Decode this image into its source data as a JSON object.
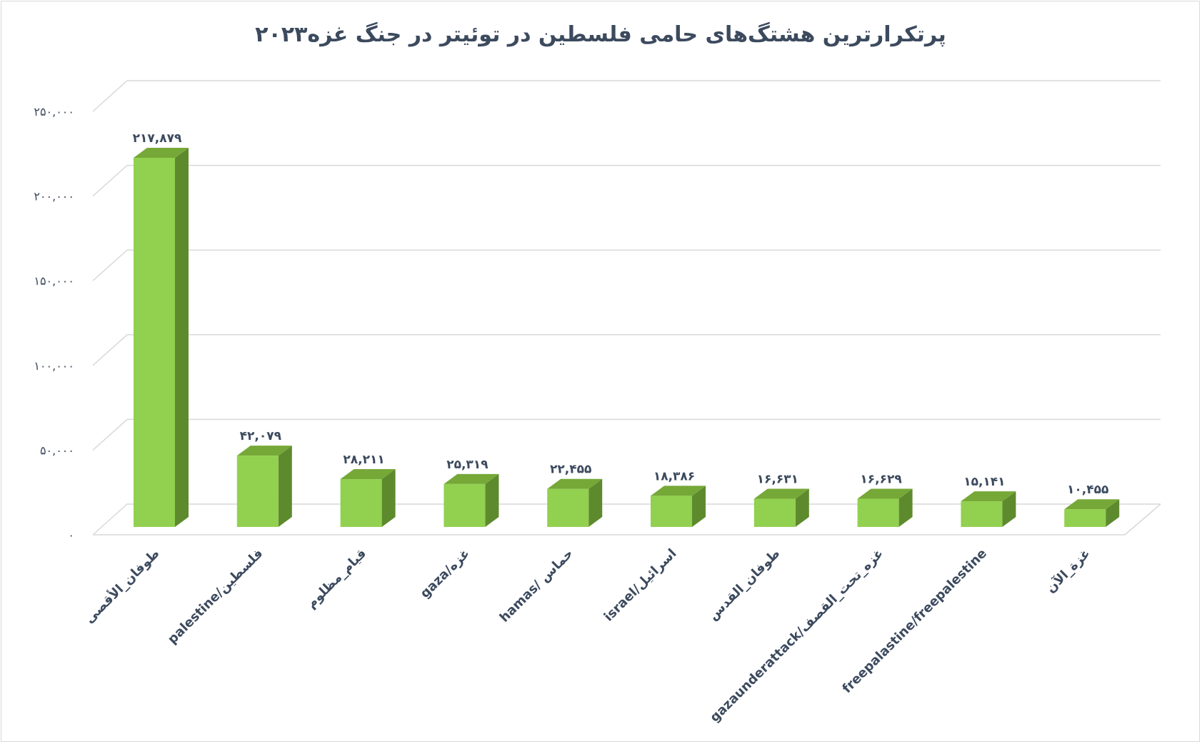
{
  "chart_data": {
    "type": "bar",
    "title": "پرتکرارترین هشتگ‌های حامی فلسطین در توئیتر در جنگ غزه۲۰۲۳",
    "xlabel": "",
    "ylabel": "",
    "ylim": [
      0,
      250000
    ],
    "grid": true,
    "legend": "none",
    "y_ticks": [
      {
        "value": 0,
        "label": "۰"
      },
      {
        "value": 50000,
        "label": "۵۰,۰۰۰"
      },
      {
        "value": 100000,
        "label": "۱۰۰,۰۰۰"
      },
      {
        "value": 150000,
        "label": "۱۵۰,۰۰۰"
      },
      {
        "value": 200000,
        "label": "۲۰۰,۰۰۰"
      },
      {
        "value": 250000,
        "label": "۲۵۰,۰۰۰"
      }
    ],
    "categories": [
      "طوفان_الأقصى",
      "palestine/فلسطين",
      "قيام_مظلوم",
      "gaza/غزه",
      "hamas/ حماس",
      "israel/اسرائيل",
      "طوفان_القدس",
      "gazaunderattack/غزه_تحت_القصف",
      "freepalastine/freepalestine",
      "غزة_الآن"
    ],
    "values": [
      217879,
      42079,
      28211,
      25319,
      22455,
      18386,
      16631,
      16629,
      15141,
      10455
    ],
    "value_labels": [
      "۲۱۷,۸۷۹",
      "۴۲,۰۷۹",
      "۲۸,۲۱۱",
      "۲۵,۳۱۹",
      "۲۲,۴۵۵",
      "۱۸,۳۸۶",
      "۱۶,۶۳۱",
      "۱۶,۶۲۹",
      "۱۵,۱۴۱",
      "۱۰,۴۵۵"
    ],
    "colors": {
      "bar_front": "#92d050",
      "bar_side": "#5e8a2e",
      "bar_top": "#76a838",
      "grid": "#d9d9d9",
      "text": "#3c4a5e"
    }
  }
}
